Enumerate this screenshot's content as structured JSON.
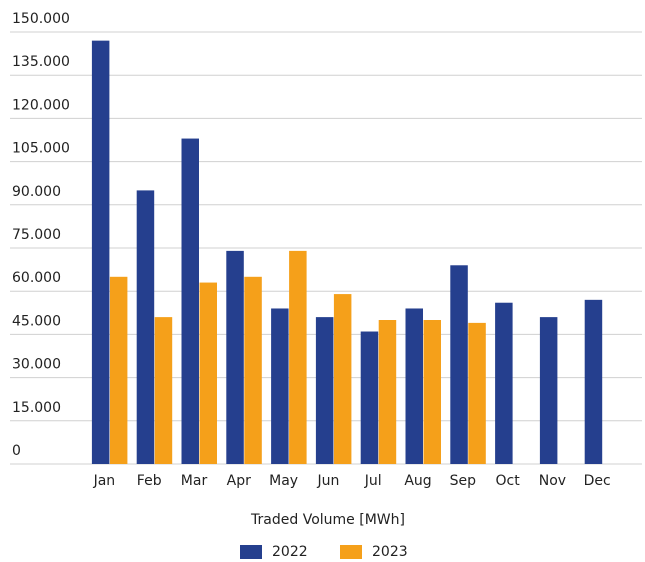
{
  "chart_data": {
    "type": "bar",
    "x_label": "Traded Volume [MWh]",
    "categories": [
      "Jan",
      "Feb",
      "Mar",
      "Apr",
      "May",
      "Jun",
      "Jul",
      "Aug",
      "Sep",
      "Oct",
      "Nov",
      "Dec"
    ],
    "series": [
      {
        "name": "2022",
        "color": "#253f8e",
        "values": [
          147000,
          95000,
          113000,
          74000,
          54000,
          51000,
          46000,
          54000,
          69000,
          56000,
          51000,
          57000
        ]
      },
      {
        "name": "2023",
        "color": "#f5a01a",
        "values": [
          65000,
          51000,
          63000,
          65000,
          74000,
          59000,
          50000,
          50000,
          49000,
          null,
          null,
          null
        ]
      }
    ],
    "ylim": [
      0,
      150000
    ],
    "yticks": [
      0,
      {
        "value": 15000,
        "label": "15.000"
      },
      {
        "value": 30000,
        "label": "30.000"
      },
      {
        "value": 45000,
        "label": "45.000"
      },
      {
        "value": 60000,
        "label": "60.000"
      },
      {
        "value": 75000,
        "label": "75.000"
      },
      {
        "value": 90000,
        "label": "90.000"
      },
      {
        "value": 105000,
        "label": "105.000"
      },
      {
        "value": 120000,
        "label": "120.000"
      },
      {
        "value": 135000,
        "label": "135.000"
      },
      {
        "value": 150000,
        "label": "150.000"
      }
    ],
    "grid": true,
    "legend": "bottom"
  }
}
